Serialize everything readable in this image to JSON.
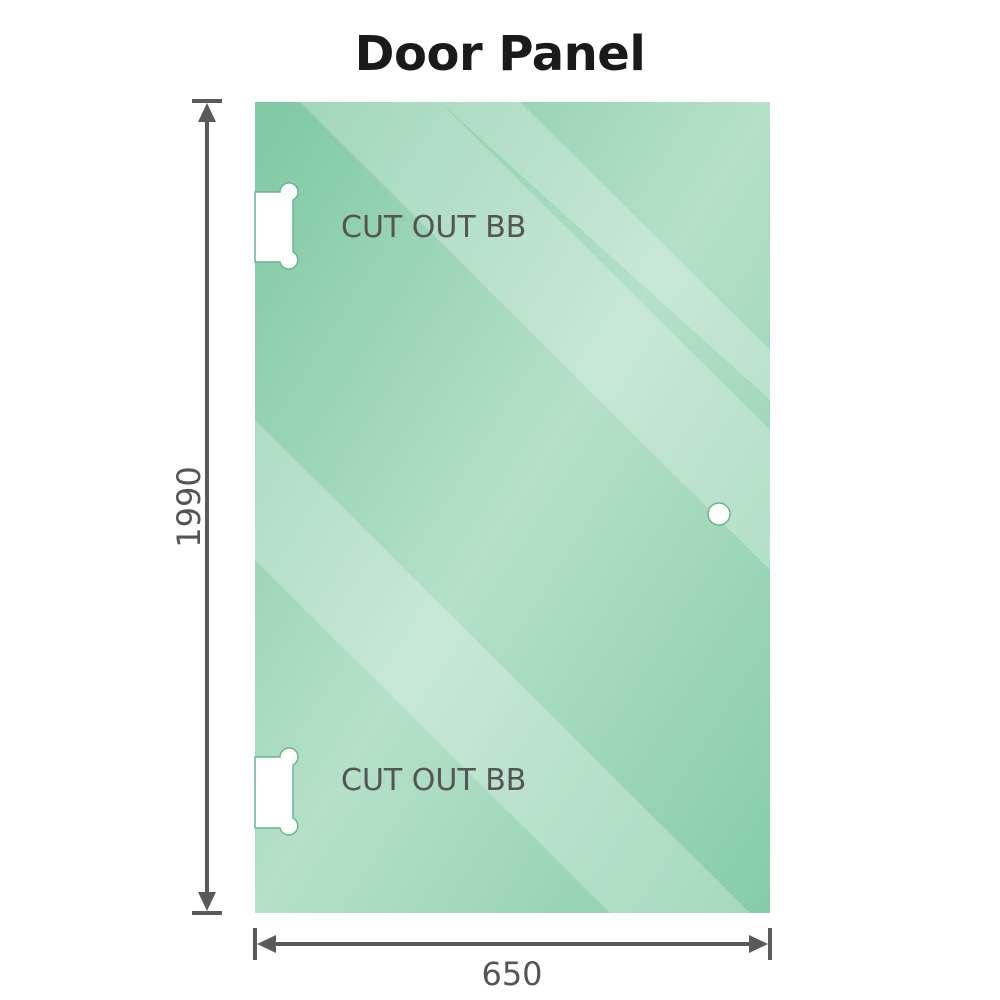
{
  "title": "Door Panel",
  "panel": {
    "height_label": "1990",
    "width_label": "650",
    "cutouts": [
      {
        "label": "CUT OUT BB"
      },
      {
        "label": "CUT OUT BB"
      }
    ],
    "glass_color": "#86cba6",
    "dimension_color": "#5a5a5a"
  }
}
